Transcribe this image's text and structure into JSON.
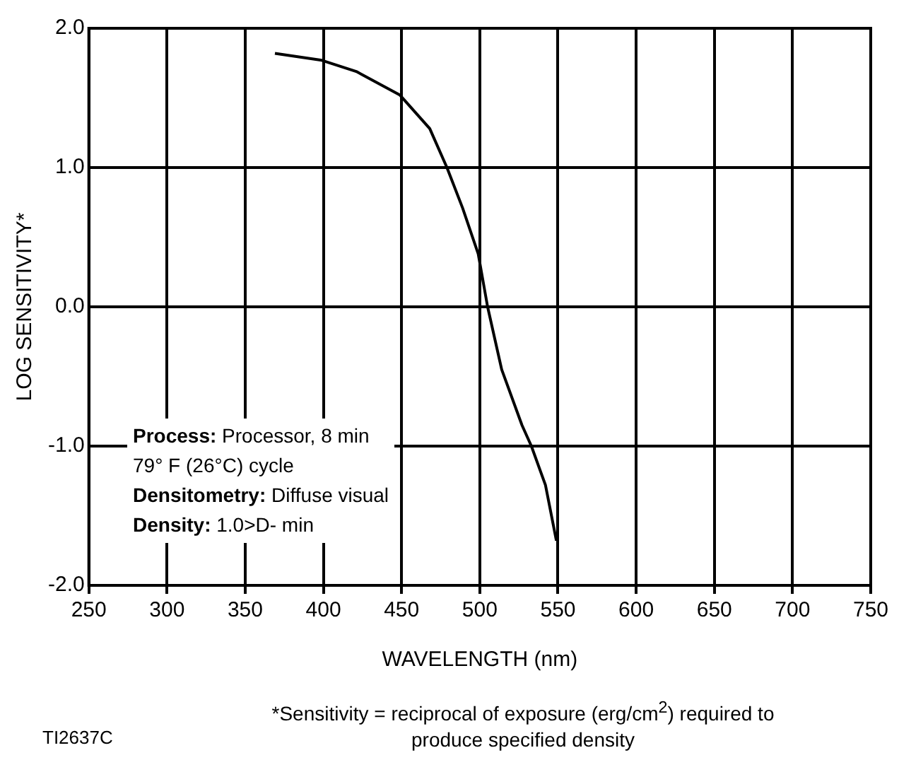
{
  "chart_data": {
    "type": "line",
    "xlabel": "WAVELENGTH (nm)",
    "ylabel": "LOG SENSITIVITY*",
    "x": [
      369,
      399,
      421,
      449,
      468,
      479,
      489,
      499,
      505,
      514,
      527,
      533,
      542,
      549
    ],
    "series": [
      {
        "color": "#000000",
        "values": [
          1.82,
          1.77,
          1.69,
          1.52,
          1.28,
          1.0,
          0.71,
          0.38,
          0.0,
          -0.45,
          -0.85,
          -1.0,
          -1.28,
          -1.68
        ]
      }
    ],
    "xlim": [
      250,
      750
    ],
    "xticks": [
      250,
      300,
      350,
      400,
      450,
      500,
      550,
      600,
      650,
      700,
      750
    ],
    "ylim": [
      -2,
      2
    ],
    "yticks": [
      {
        "value": -2,
        "label": "-2.0"
      },
      {
        "value": -1,
        "label": "-1.0"
      },
      {
        "value": 0,
        "label": "0.0"
      },
      {
        "value": 1,
        "label": "1.0"
      },
      {
        "value": 2,
        "label": "2.0"
      }
    ],
    "grid": true,
    "marker": "none",
    "line_style": "solid",
    "annotations": [
      "Process: Processor, 8 min",
      "79° F (26°C) cycle",
      "Densitometry: Diffuse visual",
      "Density: 1.0>D- min",
      "*Sensitivity = reciprocal of exposure (erg/cm$^{2}$) required to produce specified density",
      "TI2637C"
    ]
  }
}
